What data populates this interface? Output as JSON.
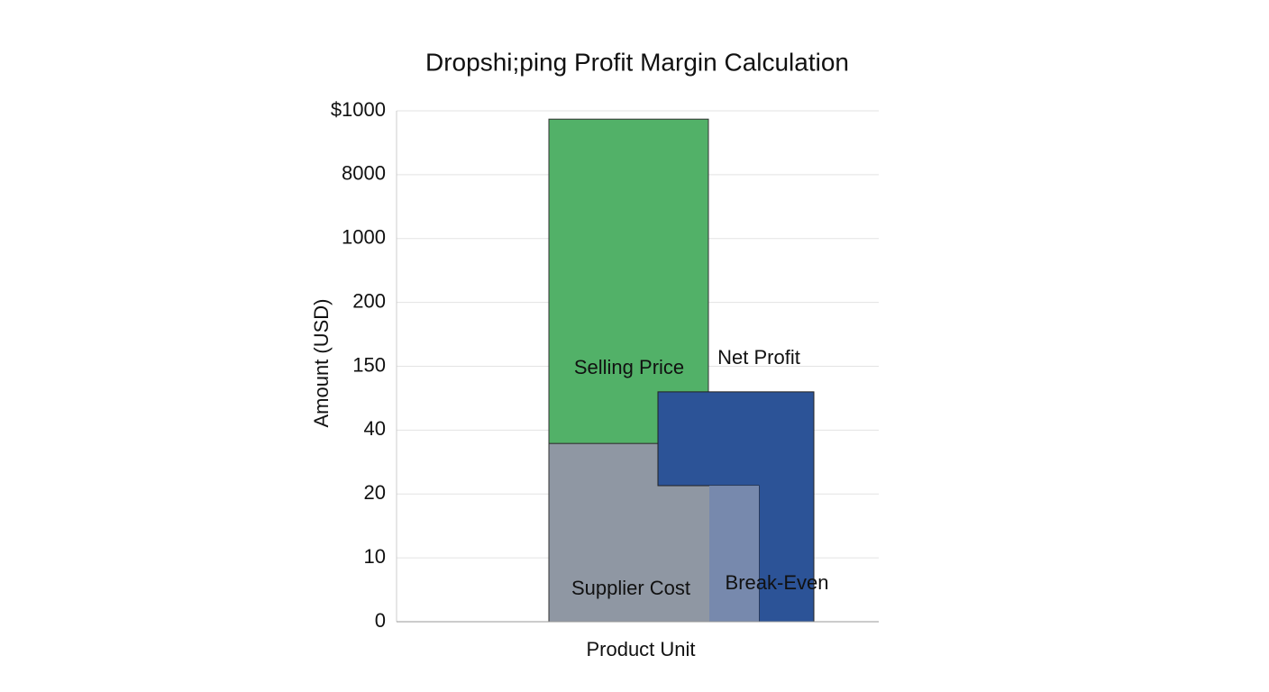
{
  "chart_data": {
    "type": "bar",
    "title": "Dropshi;ping Profit Margin Calculation",
    "ylabel": "Amount (USD)",
    "categories": [
      "Product Unit"
    ],
    "series": [
      {
        "name": "Supplier Cost",
        "color": "#8f97a3",
        "values": [
          2.79
        ]
      },
      {
        "name": "Selling Price",
        "color": "#52b168",
        "values": [
          5.08
        ]
      },
      {
        "name": "Net Profit",
        "color": "#2c5397",
        "values": [
          3.6
        ]
      },
      {
        "name": "Break-Even",
        "color": "#7789ad",
        "values": [
          2.13
        ]
      }
    ],
    "ylim": [
      0,
      8
    ],
    "yticks": [
      {
        "value": 0,
        "label": "0"
      },
      {
        "value": 1,
        "label": "10"
      },
      {
        "value": 2,
        "label": "20"
      },
      {
        "value": 3,
        "label": "40"
      },
      {
        "value": 4,
        "label": "150"
      },
      {
        "value": 5,
        "label": "200"
      },
      {
        "value": 6,
        "label": "1000"
      },
      {
        "value": 7,
        "label": "8000"
      },
      {
        "value": 8,
        "label": "$1000"
      }
    ],
    "grid": true
  }
}
